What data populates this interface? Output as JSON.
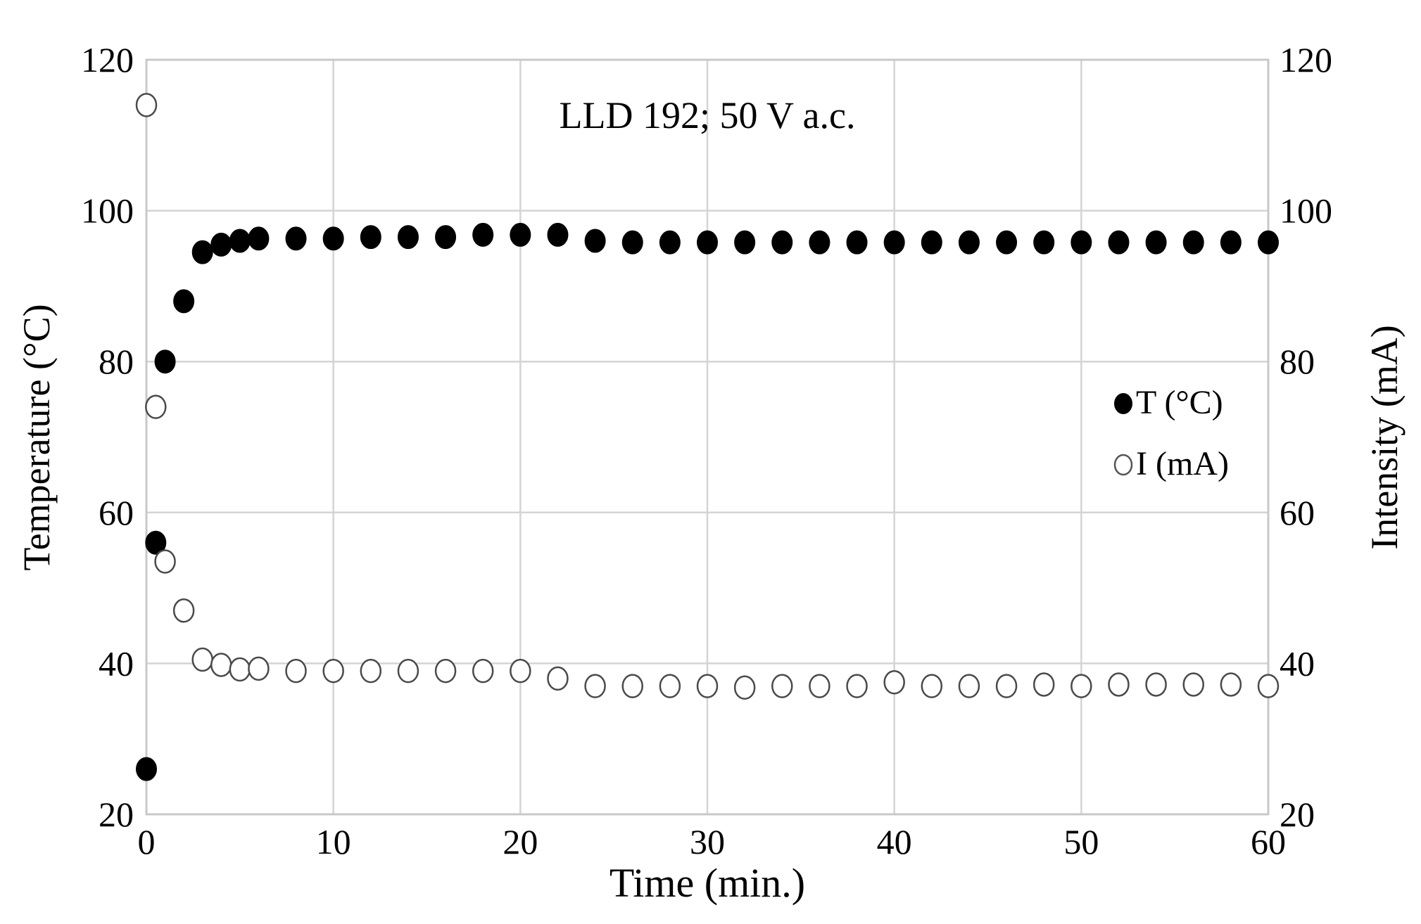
{
  "chart_data": {
    "type": "scatter",
    "title": "LLD 192; 50 V a.c.",
    "xlabel": "Time (min.)",
    "ylabel_left": "Temperature (°C)",
    "ylabel_right": "Intensity (mA)",
    "xlim": [
      0,
      60
    ],
    "ylim_left": [
      20,
      120
    ],
    "ylim_right": [
      20,
      120
    ],
    "x_ticks": [
      0,
      10,
      20,
      30,
      40,
      50,
      60
    ],
    "y_ticks_left": [
      20,
      40,
      60,
      80,
      100,
      120
    ],
    "y_ticks_right": [
      20,
      40,
      60,
      80,
      100,
      120
    ],
    "grid": true,
    "legend_position": "right",
    "series": [
      {
        "name": "T (°C)",
        "axis": "left",
        "marker": "filled-circle",
        "color": "#000000",
        "x": [
          0,
          0.5,
          1,
          2,
          3,
          4,
          5,
          6,
          8,
          10,
          12,
          14,
          16,
          18,
          20,
          22,
          24,
          26,
          28,
          30,
          32,
          34,
          36,
          38,
          40,
          42,
          44,
          46,
          48,
          50,
          52,
          54,
          56,
          58,
          60
        ],
        "y": [
          26,
          56,
          80,
          88,
          94.5,
          95.5,
          96,
          96.3,
          96.3,
          96.3,
          96.5,
          96.5,
          96.5,
          96.8,
          96.8,
          96.8,
          96,
          95.8,
          95.8,
          95.8,
          95.8,
          95.8,
          95.8,
          95.8,
          95.8,
          95.8,
          95.8,
          95.8,
          95.8,
          95.8,
          95.8,
          95.8,
          95.8,
          95.8,
          95.8
        ]
      },
      {
        "name": "I (mA)",
        "axis": "right",
        "marker": "open-circle",
        "color": "#000000",
        "x": [
          0,
          0.5,
          1,
          2,
          3,
          4,
          5,
          6,
          8,
          10,
          12,
          14,
          16,
          18,
          20,
          22,
          24,
          26,
          28,
          30,
          32,
          34,
          36,
          38,
          40,
          42,
          44,
          46,
          48,
          50,
          52,
          54,
          56,
          58,
          60
        ],
        "y": [
          114,
          74,
          53.5,
          47,
          40.5,
          39.8,
          39.2,
          39.3,
          39,
          39,
          39,
          39,
          39,
          39,
          39,
          38,
          37,
          37,
          37,
          37,
          36.8,
          37,
          37,
          37,
          37.5,
          37,
          37,
          37,
          37.2,
          37,
          37.2,
          37.2,
          37.2,
          37.2,
          37
        ]
      }
    ]
  }
}
